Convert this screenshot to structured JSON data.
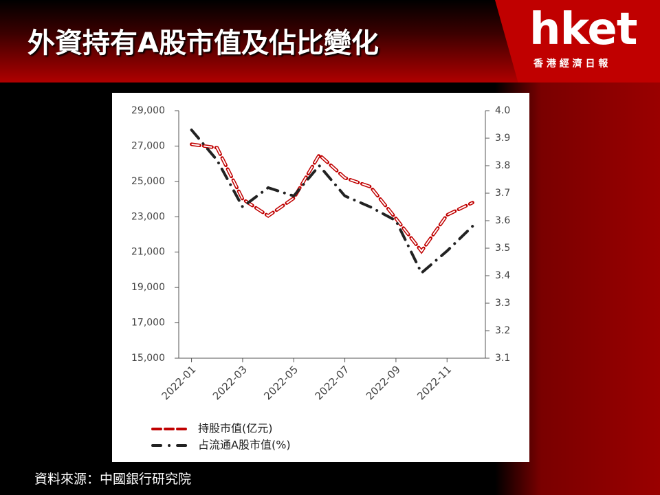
{
  "header": {
    "title": "外資持有A股市值及佔比變化",
    "logo": "hket",
    "logo_sub": "香 港 經 濟 日 報"
  },
  "chart_data": {
    "type": "line",
    "categories": [
      "2022-01",
      null,
      "2022-03",
      null,
      "2022-05",
      null,
      "2022-07",
      null,
      "2022-09",
      null,
      "2022-11",
      null
    ],
    "series": [
      {
        "name": "持股市值(亿元)",
        "color": "#c00000",
        "values": [
          27100,
          26900,
          24000,
          23050,
          24050,
          26500,
          25200,
          24700,
          22900,
          21050,
          23100,
          23800
        ]
      },
      {
        "name": "占流通A股市值(%)",
        "color": "#222222",
        "axis": "y2",
        "values": [
          3.93,
          3.82,
          3.65,
          3.72,
          3.69,
          3.8,
          3.69,
          3.65,
          3.6,
          3.41,
          3.49,
          3.58
        ]
      }
    ],
    "ylim": [
      15000,
      29000
    ],
    "yticks": [
      {
        "value": 15000,
        "label": "15,000"
      },
      {
        "value": 17000,
        "label": "17,000"
      },
      {
        "value": 19000,
        "label": "19,000"
      },
      {
        "value": 21000,
        "label": "21,000"
      },
      {
        "value": 23000,
        "label": "23,000"
      },
      {
        "value": 25000,
        "label": "25,000"
      },
      {
        "value": 27000,
        "label": "27,000"
      },
      {
        "value": 29000,
        "label": "29,000"
      }
    ],
    "y2lim": [
      3.1,
      4.0
    ],
    "y2ticks": [
      3.1,
      3.2,
      3.3,
      3.4,
      3.5,
      3.6,
      3.7,
      3.8,
      3.9,
      {
        "value": 4.0,
        "label": "4.0"
      }
    ]
  },
  "footer": {
    "source": "資料來源：中國銀行研究院"
  }
}
